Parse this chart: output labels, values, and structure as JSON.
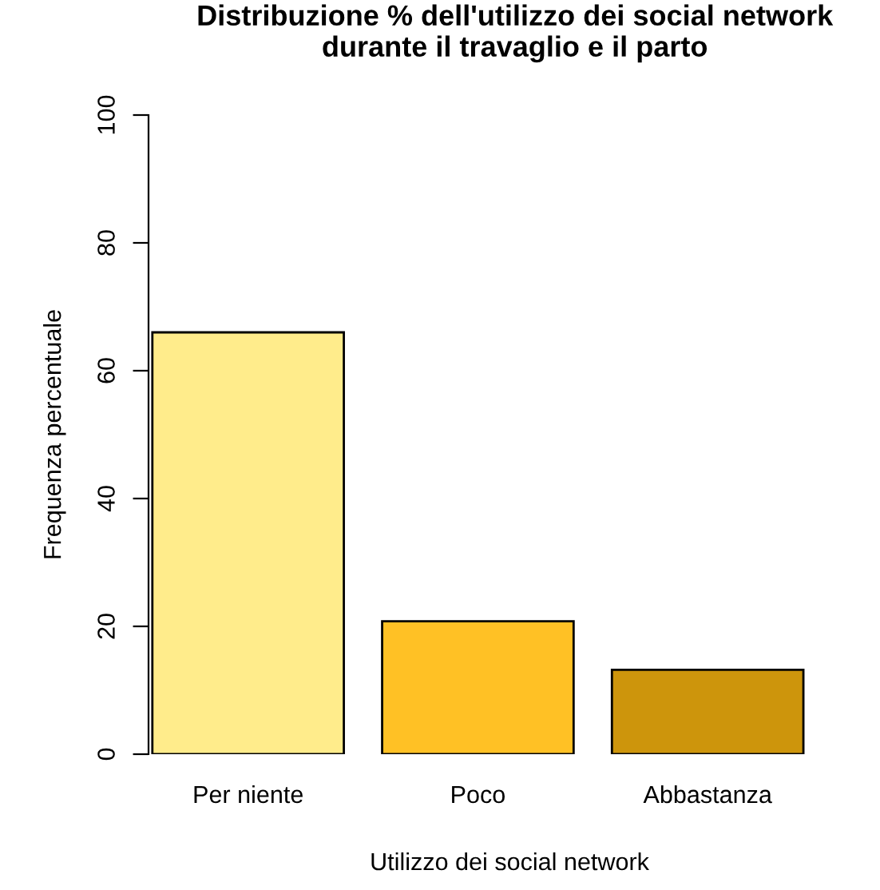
{
  "chart_data": {
    "type": "bar",
    "title": "Distribuzione % dell'utilizzo dei social network\ndurante il travaglio e il parto",
    "xlabel": "Utilizzo dei social network",
    "ylabel": "Frequenza percentuale",
    "categories": [
      "Per niente",
      "Poco",
      "Abbastanza"
    ],
    "values": [
      66.0,
      20.8,
      13.2
    ],
    "colors": [
      "#ffec8b",
      "#ffc125",
      "#cd950c"
    ],
    "ylim": [
      0,
      100
    ],
    "yticks": [
      0,
      20,
      40,
      60,
      80,
      100
    ],
    "grid": false,
    "legend": false
  }
}
